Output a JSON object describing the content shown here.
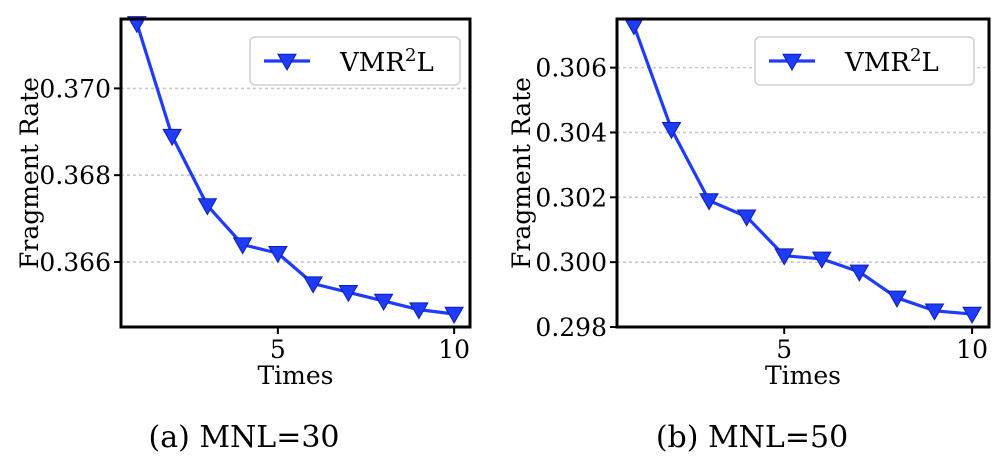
{
  "chart_data": [
    {
      "type": "line",
      "caption": "(a)  MNL=30",
      "xlabel": "Times",
      "ylabel": "Fragment Rate",
      "xlim": [
        0.55,
        10.45
      ],
      "ylim": [
        0.3645,
        0.3716
      ],
      "xticks": [
        5,
        10
      ],
      "yticks": [
        0.366,
        0.368,
        0.37
      ],
      "ytick_labels": [
        "0.366",
        "0.368",
        "0.370"
      ],
      "grid": "horizontal dotted",
      "legend": "top-right",
      "color": "#1f3bff",
      "series": [
        {
          "name_base": "VMR",
          "name_sup": "2",
          "name_tail": "L",
          "x": [
            1,
            2,
            3,
            4,
            5,
            6,
            7,
            8,
            9,
            10
          ],
          "values": [
            0.3715,
            0.3689,
            0.3673,
            0.3664,
            0.3662,
            0.3655,
            0.3653,
            0.3651,
            0.3649,
            0.3648
          ]
        }
      ]
    },
    {
      "type": "line",
      "caption": "(b)  MNL=50",
      "xlabel": "Times",
      "ylabel": "Fragment Rate",
      "xlim": [
        0.55,
        10.45
      ],
      "ylim": [
        0.298,
        0.3075
      ],
      "xticks": [
        5,
        10
      ],
      "yticks": [
        0.298,
        0.3,
        0.302,
        0.304,
        0.306
      ],
      "ytick_labels": [
        "0.298",
        "0.300",
        "0.302",
        "0.304",
        "0.306"
      ],
      "grid": "horizontal dotted",
      "legend": "top-right",
      "color": "#1f3bff",
      "series": [
        {
          "name_base": "VMR",
          "name_sup": "2",
          "name_tail": "L",
          "x": [
            1,
            2,
            3,
            4,
            5,
            6,
            7,
            8,
            9,
            10
          ],
          "values": [
            0.3073,
            0.3041,
            0.3019,
            0.3014,
            0.3002,
            0.3001,
            0.2997,
            0.2989,
            0.2985,
            0.2984
          ]
        }
      ]
    }
  ]
}
